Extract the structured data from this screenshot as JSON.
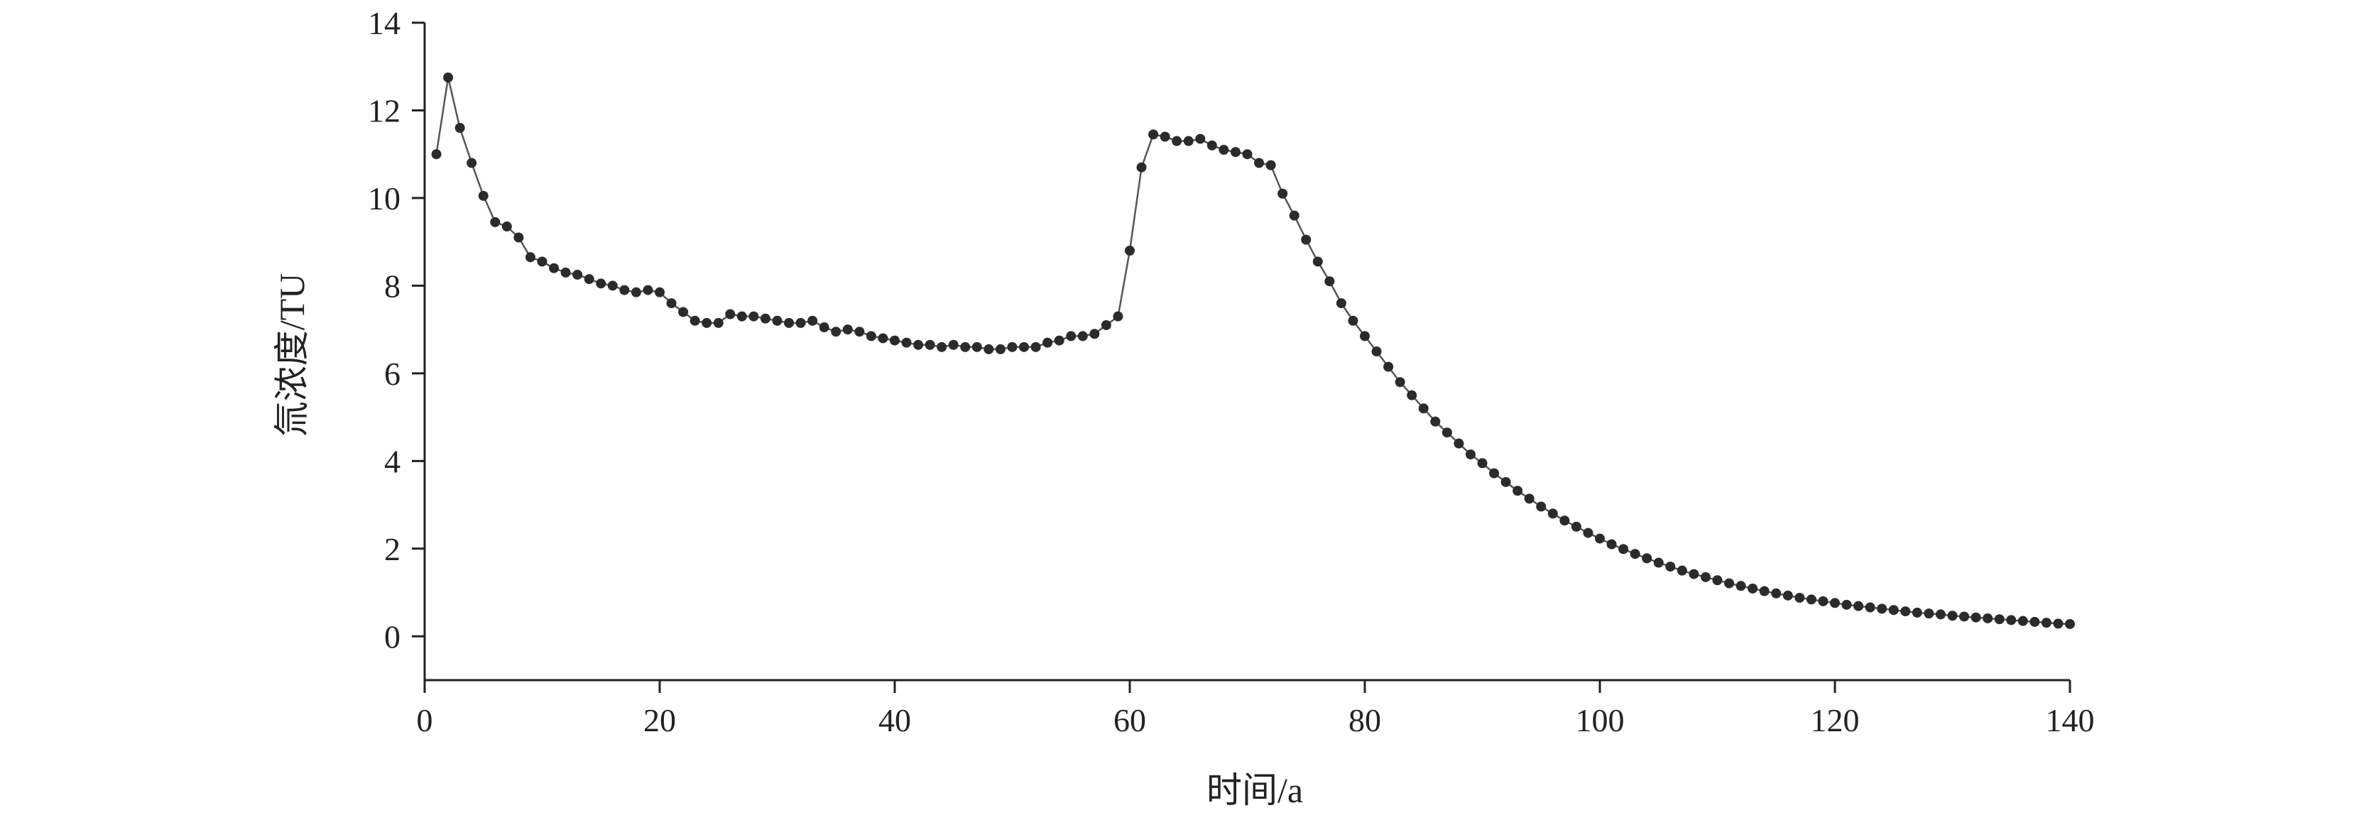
{
  "chart_data": {
    "type": "line",
    "title": "",
    "xlabel": "时间/a",
    "ylabel": "氚浓度/TU",
    "xlim": [
      0,
      140
    ],
    "ylim": [
      -1,
      14
    ],
    "xticks": [
      "0",
      "20",
      "40",
      "60",
      "80",
      "100",
      "120",
      "140"
    ],
    "yticks": [
      "0",
      "2",
      "4",
      "6",
      "8",
      "10",
      "12",
      "14"
    ],
    "grid": false,
    "legend": "none",
    "colors": {
      "line": "#555555",
      "marker": "#2b2b2b",
      "axis": "#222222"
    },
    "series": [
      {
        "x": [
          1,
          2,
          3,
          4,
          5,
          6,
          7,
          8,
          9,
          10,
          11,
          12,
          13,
          14,
          15,
          16,
          17,
          18,
          19,
          20,
          21,
          22,
          23,
          24,
          25,
          26,
          27,
          28,
          29,
          30,
          31,
          32,
          33,
          34,
          35,
          36,
          37,
          38,
          39,
          40,
          41,
          42,
          43,
          44,
          45,
          46,
          47,
          48,
          49,
          50,
          51,
          52,
          53,
          54,
          55,
          56,
          57,
          58,
          59,
          60,
          61,
          62,
          63,
          64,
          65,
          66,
          67,
          68,
          69,
          70,
          71,
          72,
          73,
          74,
          75,
          76,
          77,
          78,
          79,
          80,
          81,
          82,
          83,
          84,
          85,
          86,
          87,
          88,
          89,
          90,
          91,
          92,
          93,
          94,
          95,
          96,
          97,
          98,
          99,
          100,
          101,
          102,
          103,
          104,
          105,
          106,
          107,
          108,
          109,
          110,
          111,
          112,
          113,
          114,
          115,
          116,
          117,
          118,
          119,
          120,
          121,
          122,
          123,
          124,
          125,
          126,
          127,
          128,
          129,
          130,
          131,
          132,
          133,
          134,
          135,
          136,
          137,
          138,
          139,
          140
        ],
        "y": [
          11.0,
          12.75,
          11.6,
          10.8,
          10.05,
          9.45,
          9.35,
          9.1,
          8.65,
          8.55,
          8.4,
          8.3,
          8.25,
          8.15,
          8.05,
          8.0,
          7.9,
          7.85,
          7.9,
          7.85,
          7.6,
          7.4,
          7.2,
          7.15,
          7.15,
          7.35,
          7.3,
          7.3,
          7.25,
          7.2,
          7.15,
          7.15,
          7.2,
          7.05,
          6.95,
          7.0,
          6.95,
          6.85,
          6.8,
          6.75,
          6.7,
          6.65,
          6.65,
          6.6,
          6.65,
          6.6,
          6.6,
          6.55,
          6.55,
          6.6,
          6.6,
          6.6,
          6.7,
          6.75,
          6.85,
          6.85,
          6.9,
          7.1,
          7.3,
          8.8,
          10.7,
          11.45,
          11.4,
          11.3,
          11.3,
          11.35,
          11.2,
          11.1,
          11.05,
          11.0,
          10.8,
          10.75,
          10.1,
          9.6,
          9.05,
          8.55,
          8.1,
          7.6,
          7.2,
          6.85,
          6.5,
          6.15,
          5.8,
          5.5,
          5.2,
          4.9,
          4.65,
          4.4,
          4.15,
          3.95,
          3.72,
          3.52,
          3.32,
          3.14,
          2.96,
          2.8,
          2.64,
          2.5,
          2.36,
          2.23,
          2.1,
          1.99,
          1.88,
          1.78,
          1.68,
          1.59,
          1.5,
          1.42,
          1.35,
          1.28,
          1.21,
          1.15,
          1.09,
          1.03,
          0.98,
          0.93,
          0.88,
          0.84,
          0.8,
          0.76,
          0.72,
          0.69,
          0.66,
          0.63,
          0.6,
          0.57,
          0.54,
          0.52,
          0.5,
          0.47,
          0.45,
          0.43,
          0.41,
          0.39,
          0.37,
          0.35,
          0.33,
          0.31,
          0.29,
          0.28
        ]
      }
    ]
  }
}
